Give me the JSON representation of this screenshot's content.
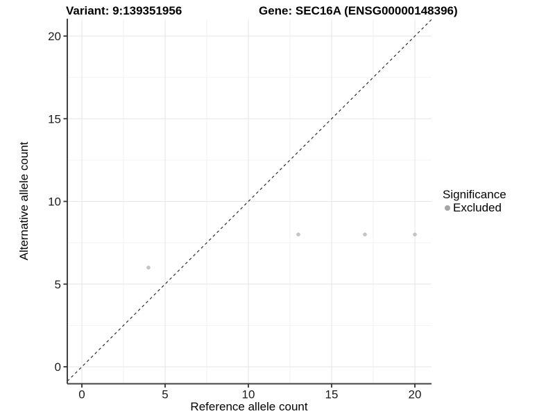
{
  "header": {
    "variant_title": "Variant: 9:139351956",
    "gene_title": "Gene: SEC16A (ENSG00000148396)"
  },
  "axes": {
    "x_label": "Reference allele count",
    "y_label": "Alternative allele count"
  },
  "legend": {
    "title": "Significance",
    "items": [
      {
        "label": "Excluded",
        "color": "#a6a6a6"
      }
    ]
  },
  "chart_data": {
    "type": "scatter",
    "title": "Variant: 9:139351956   Gene: SEC16A (ENSG00000148396)",
    "xlabel": "Reference allele count",
    "ylabel": "Alternative allele count",
    "x_ticks": [
      0,
      5,
      10,
      15,
      20
    ],
    "y_ticks": [
      0,
      5,
      10,
      15,
      20
    ],
    "xlim": [
      -0.9,
      21.0
    ],
    "ylim": [
      -1.05,
      21.05
    ],
    "grid": {
      "major": true,
      "minor": true
    },
    "legend_position": "right",
    "reference_line": {
      "type": "identity",
      "style": "dashed",
      "color": "#2b2b2b"
    },
    "series": [
      {
        "name": "Excluded",
        "color": "#c4c4c4",
        "points": [
          [
            4,
            6
          ],
          [
            13,
            8
          ],
          [
            17,
            8
          ],
          [
            20,
            8
          ]
        ]
      }
    ]
  },
  "colors": {
    "background": "#ffffff",
    "grid_major": "#e6e6e6",
    "grid_minor": "#f2f2f2",
    "axis_line": "#404040",
    "tick_mark": "#333333",
    "tick_label": "#1a1a1a"
  }
}
